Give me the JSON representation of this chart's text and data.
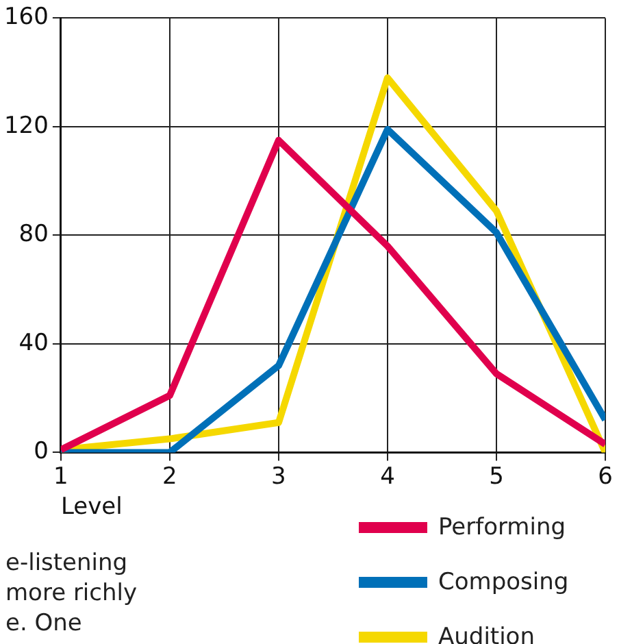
{
  "chart_data": {
    "type": "line",
    "xlabel": "Level",
    "x": [
      1,
      2,
      3,
      4,
      5,
      6
    ],
    "series": [
      {
        "name": "Performing",
        "color": "#e0004d",
        "values": [
          1,
          21,
          115,
          76,
          29,
          3
        ]
      },
      {
        "name": "Composing",
        "color": "#0070b8",
        "values": [
          0,
          0,
          32,
          119,
          81,
          12
        ]
      },
      {
        "name": "Audition",
        "color": "#f5d800",
        "values": [
          1,
          5,
          11,
          138,
          89,
          0
        ]
      }
    ],
    "xlim": [
      1,
      6
    ],
    "xticks": [
      1,
      2,
      3,
      4,
      5,
      6
    ],
    "ylim": [
      0,
      160
    ],
    "yticks": [
      0,
      40,
      80,
      120,
      160
    ],
    "grid": true,
    "legend": "bottom right",
    "marker": "none",
    "line_style": "solid",
    "annotations": [
      "e-listening",
      "more richly",
      "e. One"
    ]
  }
}
